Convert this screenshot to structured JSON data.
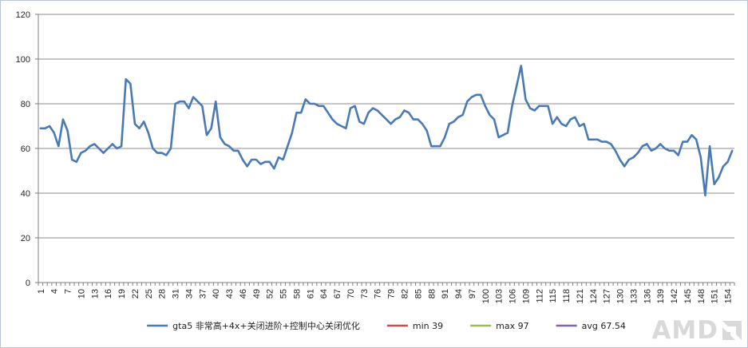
{
  "chart_data": {
    "type": "line",
    "title": "",
    "xlabel": "",
    "ylabel": "",
    "ylim": [
      0,
      120
    ],
    "yticks": [
      0,
      20,
      40,
      60,
      80,
      100,
      120
    ],
    "xlim": [
      1,
      155
    ],
    "xtick_step": 3,
    "grid": "horizontal",
    "legend": "bottom",
    "series": [
      {
        "name": "gta5 非常高+4x+关闭进阶+控制中心关闭优化",
        "color": "#4a7ab5",
        "x": [
          1,
          2,
          3,
          4,
          5,
          6,
          7,
          8,
          9,
          10,
          11,
          12,
          13,
          14,
          15,
          16,
          17,
          18,
          19,
          20,
          21,
          22,
          23,
          24,
          25,
          26,
          27,
          28,
          29,
          30,
          31,
          32,
          33,
          34,
          35,
          36,
          37,
          38,
          39,
          40,
          41,
          42,
          43,
          44,
          45,
          46,
          47,
          48,
          49,
          50,
          51,
          52,
          53,
          54,
          55,
          56,
          57,
          58,
          59,
          60,
          61,
          62,
          63,
          64,
          65,
          66,
          67,
          68,
          69,
          70,
          71,
          72,
          73,
          74,
          75,
          76,
          77,
          78,
          79,
          80,
          81,
          82,
          83,
          84,
          85,
          86,
          87,
          88,
          89,
          90,
          91,
          92,
          93,
          94,
          95,
          96,
          97,
          98,
          99,
          100,
          101,
          102,
          103,
          104,
          105,
          106,
          107,
          108,
          109,
          110,
          111,
          112,
          113,
          114,
          115,
          116,
          117,
          118,
          119,
          120,
          121,
          122,
          123,
          124,
          125,
          126,
          127,
          128,
          129,
          130,
          131,
          132,
          133,
          134,
          135,
          136,
          137,
          138,
          139,
          140,
          141,
          142,
          143,
          144,
          145,
          146,
          147,
          148,
          149,
          150,
          151,
          152,
          153,
          154,
          155
        ],
        "values": [
          69,
          69,
          70,
          67,
          61,
          73,
          68,
          55,
          54,
          58,
          59,
          61,
          62,
          60,
          58,
          60,
          62,
          60,
          61,
          91,
          89,
          71,
          69,
          72,
          67,
          60,
          58,
          58,
          57,
          60,
          80,
          81,
          81,
          78,
          83,
          81,
          79,
          66,
          69,
          81,
          65,
          62,
          61,
          59,
          59,
          55,
          52,
          55,
          55,
          53,
          54,
          54,
          51,
          56,
          55,
          61,
          67,
          76,
          76,
          82,
          80,
          80,
          79,
          79,
          76,
          73,
          71,
          70,
          69,
          78,
          79,
          72,
          71,
          76,
          78,
          77,
          75,
          73,
          71,
          73,
          74,
          77,
          76,
          73,
          73,
          71,
          68,
          61,
          61,
          61,
          65,
          71,
          72,
          74,
          75,
          81,
          83,
          84,
          84,
          79,
          75,
          73,
          65,
          66,
          67,
          79,
          88,
          97,
          82,
          78,
          77,
          79,
          79,
          79,
          71,
          74,
          71,
          70,
          73,
          74,
          70,
          71,
          64,
          64,
          64,
          63,
          63,
          62,
          59,
          55,
          52,
          55,
          56,
          58,
          61,
          62,
          59,
          60,
          62,
          60,
          59,
          59,
          57,
          63,
          63,
          66,
          64,
          56,
          39,
          61,
          44,
          47,
          52,
          54,
          59
        ]
      },
      {
        "name": "min 39",
        "color": "#c0504d"
      },
      {
        "name": "max 97",
        "color": "#9bbb59"
      },
      {
        "name": "avg 67.54",
        "color": "#8064a2"
      }
    ]
  },
  "logo": {
    "text": "AMD"
  }
}
